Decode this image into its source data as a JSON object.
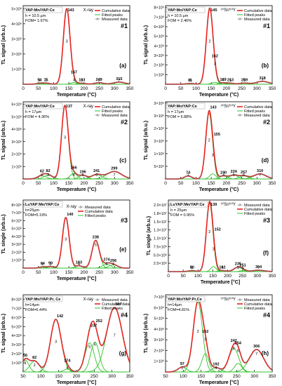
{
  "chart_data": [
    {
      "type": "line",
      "label": "(a)",
      "number": "#1",
      "title": "YAP:Mn/YAP:Ce",
      "source": "X-ray",
      "params": [
        "h = 10.5 µm",
        "FOM= 1.97%"
      ],
      "xlabel": "Temperature (°C)",
      "ylabel": "TL signal (arb.u.)",
      "xlim": [
        0,
        350
      ],
      "ylim": [
        0,
        5200000.0
      ],
      "xticks": [
        0,
        50,
        100,
        150,
        200,
        250,
        300,
        350
      ],
      "yticks": [
        1000000.0,
        2000000.0,
        3000000.0,
        4000000.0,
        5000000.0
      ],
      "ytick_labels": [
        "1×10⁶",
        "2×10⁶",
        "3×10⁶",
        "4×10⁶",
        "5×10⁶"
      ],
      "legend": [
        "Cumulative data",
        "Fitted peaks",
        "Measured data"
      ],
      "peaks": [
        {
          "T": 54,
          "A": 60000.0,
          "w": 10
        },
        {
          "T": 75,
          "A": 70000.0,
          "w": 12
        },
        {
          "T": 143,
          "A": 5000000.0,
          "w": 11
        },
        {
          "T": 167,
          "A": 120000.0,
          "w": 10
        },
        {
          "T": 193,
          "A": 60000.0,
          "w": 12
        },
        {
          "T": 249,
          "A": 100000.0,
          "w": 14
        },
        {
          "T": 315,
          "A": 140000.0,
          "w": 18
        }
      ],
      "peak_labels": [
        "54",
        "75",
        "143",
        "167",
        "193",
        "249",
        "315"
      ],
      "peak_numbers": [
        "1",
        "2",
        "3",
        "4",
        "5",
        "6",
        "7"
      ]
    },
    {
      "type": "line",
      "label": "(b)",
      "number": "#1",
      "title": "YAP:Mn/YAP:Ce",
      "source": "⁹⁰Sr/⁹⁰Y",
      "params": [
        "h = 10.5 µm",
        "FOM = 2.46%"
      ],
      "xlabel": "Temperature (°C)",
      "ylabel": "TL signal (arb.u.)",
      "xlim": [
        0,
        350
      ],
      "ylim": [
        0,
        8200000.0
      ],
      "xticks": [
        0,
        50,
        100,
        150,
        200,
        250,
        300,
        350
      ],
      "yticks": [
        1000000.0,
        2000000.0,
        3000000.0,
        4000000.0,
        5000000.0,
        6000000.0,
        7000000.0,
        8000000.0
      ],
      "ytick_labels": [
        "1×10⁶",
        "2×10⁶",
        "3×10⁶",
        "4×10⁶",
        "5×10⁶",
        "6×10⁶",
        "7×10⁶",
        "8×10⁶"
      ],
      "legend": [
        "Cumulative data",
        "Fitted peaks",
        "Measured data"
      ],
      "peaks": [
        {
          "T": 81,
          "A": 80000.0,
          "w": 12
        },
        {
          "T": 145,
          "A": 7900000.0,
          "w": 11
        },
        {
          "T": 162,
          "A": 200000.0,
          "w": 10
        },
        {
          "T": 189,
          "A": 120000.0,
          "w": 12
        },
        {
          "T": 213,
          "A": 100000.0,
          "w": 12
        },
        {
          "T": 259,
          "A": 120000.0,
          "w": 14
        },
        {
          "T": 318,
          "A": 300000.0,
          "w": 20
        }
      ],
      "peak_labels": [
        "81",
        "145",
        "162",
        "189",
        "213",
        "259",
        "318"
      ],
      "peak_numbers": [
        "1",
        "2",
        "3",
        "4",
        "5",
        "6",
        "7"
      ]
    },
    {
      "type": "line",
      "label": "(c)",
      "number": "#2",
      "title": "YAP:Mn/YAP:Ce",
      "source": "X-ray",
      "params": [
        "h = 17µm",
        "FOM = 4.36%"
      ],
      "xlabel": "Temperature (°C)",
      "ylabel": "TL signal (arb.u.)",
      "xlim": [
        0,
        350
      ],
      "ylim": [
        0,
        6200000.0
      ],
      "xticks": [
        0,
        50,
        100,
        150,
        200,
        250,
        300,
        350
      ],
      "yticks": [
        1000000.0,
        2000000.0,
        3000000.0,
        4000000.0,
        5000000.0,
        6000000.0
      ],
      "ytick_labels": [
        "1×10⁶",
        "2×10⁶",
        "3×10⁶",
        "4×10⁶",
        "5×10⁶",
        "6×10⁶"
      ],
      "legend": [
        "Cumulative data",
        "Fitted peaks",
        "Measured data"
      ],
      "peaks": [
        {
          "T": 62,
          "A": 250000.0,
          "w": 14
        },
        {
          "T": 82,
          "A": 300000.0,
          "w": 14
        },
        {
          "T": 137,
          "A": 5900000.0,
          "w": 11
        },
        {
          "T": 166,
          "A": 450000.0,
          "w": 11
        },
        {
          "T": 196,
          "A": 300000.0,
          "w": 12
        },
        {
          "T": 241,
          "A": 350000.0,
          "w": 16
        },
        {
          "T": 299,
          "A": 600000.0,
          "w": 24
        }
      ],
      "peak_labels": [
        "62",
        "82",
        "137",
        "166",
        "196",
        "241",
        "299"
      ],
      "peak_numbers": [
        "1",
        "2",
        "3",
        "4",
        "5",
        "6",
        "7"
      ]
    },
    {
      "type": "line",
      "label": "(d)",
      "number": "#2",
      "title": "YAP:Mn/YAP:Ce",
      "source": "⁹⁰Sr/⁹⁰Y",
      "params": [
        "h = 17µm",
        "FOM = 6.88%"
      ],
      "xlabel": "Temperature (°C)",
      "ylabel": "TL signal (arb.u.)",
      "xlim": [
        0,
        350
      ],
      "ylim": [
        0,
        3050000.0
      ],
      "xticks": [
        0,
        50,
        100,
        150,
        200,
        250,
        300,
        350
      ],
      "yticks": [
        500000.0,
        1000000.0,
        1500000.0,
        2000000.0,
        2500000.0,
        3000000.0
      ],
      "ytick_labels": [
        "5×10⁵",
        "1×10⁶",
        "2×10⁶",
        "2×10⁶",
        "3×10⁶",
        "3×10⁶"
      ],
      "legend": [
        "Cumulative data",
        "Fitted peaks",
        "Measured data"
      ],
      "peaks": [
        {
          "T": 74,
          "A": 120000.0,
          "w": 12
        },
        {
          "T": 143,
          "A": 2600000.0,
          "w": 11
        },
        {
          "T": 155,
          "A": 200000.0,
          "w": 10
        },
        {
          "T": 190,
          "A": 120000.0,
          "w": 12
        },
        {
          "T": 224,
          "A": 150000.0,
          "w": 14
        },
        {
          "T": 257,
          "A": 120000.0,
          "w": 14
        },
        {
          "T": 310,
          "A": 200000.0,
          "w": 20
        }
      ],
      "peak_labels": [
        "74",
        "143",
        "155",
        "190",
        "224",
        "257",
        "310"
      ],
      "peak_numbers": [
        "1",
        "2",
        "3",
        "4",
        "5",
        "6",
        "7"
      ]
    },
    {
      "type": "line",
      "label": "(e)",
      "number": "#3",
      "title": "LuYAP:Mn/YAP:Ce",
      "source": "X-ray",
      "params": [
        "h=25µm",
        "FOM=5.19%"
      ],
      "xlabel": "Temperature [°C]",
      "ylabel": "TL single (arb.u.)",
      "xlim": [
        0,
        350
      ],
      "ylim": [
        0,
        8600000.0
      ],
      "xticks": [
        0,
        50,
        100,
        150,
        200,
        250,
        300,
        350
      ],
      "yticks": [
        1000000.0,
        2000000.0,
        3000000.0,
        4000000.0,
        5000000.0,
        6000000.0,
        7000000.0,
        8000000.0
      ],
      "ytick_labels": [
        "1×10⁶",
        "2×10⁶",
        "3×10⁶",
        "4×10⁶",
        "5×10⁶",
        "6×10⁶",
        "7×10⁶",
        "8×10⁶"
      ],
      "legend": [
        "Measured data",
        "Cumulative data",
        "Fitted peaks"
      ],
      "peaks": [
        {
          "T": 64,
          "A": 150000.0,
          "w": 10
        },
        {
          "T": 90,
          "A": 200000.0,
          "w": 12
        },
        {
          "T": 140,
          "A": 6400000.0,
          "w": 11
        },
        {
          "T": 183,
          "A": 300000.0,
          "w": 12
        },
        {
          "T": 238,
          "A": 3500000.0,
          "w": 12
        },
        {
          "T": 274,
          "A": 500000.0,
          "w": 13
        },
        {
          "T": 296,
          "A": 400000.0,
          "w": 14
        }
      ],
      "peak_labels": [
        "64",
        "90",
        "140",
        "183",
        "238",
        "274",
        "296"
      ],
      "peak_numbers": [
        "1",
        "2",
        "3",
        "4",
        "5",
        "6",
        "7"
      ]
    },
    {
      "type": "line",
      "label": "(f)",
      "number": "#3",
      "title": "LuYAP:Mn/YAP:Ce",
      "source": "⁹⁰Sr/⁹⁰Y",
      "params": [
        "h = 25µm",
        "FOM = 0.95%"
      ],
      "xlabel": "Temperature [°C]",
      "ylabel": "TL single (arb.u.)",
      "xlim": [
        0,
        350
      ],
      "ylim": [
        0,
        21500000.0
      ],
      "xticks": [
        0,
        50,
        100,
        150,
        200,
        250,
        300,
        350
      ],
      "yticks": [
        2500000.0,
        5000000.0,
        7500000.0,
        10000000.0,
        12500000.0,
        15000000.0,
        17500000.0,
        20000000.0
      ],
      "ytick_labels": [
        "2.5×10⁶",
        "5.0×10⁶",
        "7.5×10⁶",
        "1.0×10⁷",
        "1.3×10⁷",
        "1.5×10⁷",
        "1.8×10⁷",
        "2.0×10⁷"
      ],
      "legend": [
        "Measured data",
        "Cumulative data",
        "Fitted peaks"
      ],
      "peaks": [
        {
          "T": 80,
          "A": 300000.0,
          "w": 12
        },
        {
          "T": 139,
          "A": 20500000.0,
          "w": 11
        },
        {
          "T": 152,
          "A": 1500000.0,
          "w": 9
        },
        {
          "T": 182,
          "A": 300000.0,
          "w": 12
        },
        {
          "T": 235,
          "A": 1300000.0,
          "w": 14
        },
        {
          "T": 251,
          "A": 300000.0,
          "w": 10
        },
        {
          "T": 304,
          "A": 400000.0,
          "w": 20
        }
      ],
      "peak_labels": [
        "80",
        "139",
        "152",
        "182",
        "235",
        "251",
        "304"
      ],
      "peak_numbers": [
        "1",
        "2",
        "3",
        "4",
        "5",
        "6",
        "7"
      ]
    },
    {
      "type": "line",
      "label": "(g)",
      "number": "#4",
      "title": "YAP:Mn/YAP:Pr, Ce",
      "source": "X-ray",
      "params": [
        "h=14µm",
        "FOM=6.44%"
      ],
      "xlabel": "Temperature [°C]",
      "ylabel": "TL signal (arb.u.)",
      "xlim": [
        50,
        350
      ],
      "ylim": [
        0,
        8500000.0
      ],
      "xticks": [
        50,
        100,
        150,
        200,
        250,
        300,
        350
      ],
      "yticks": [
        1000000.0,
        2000000.0,
        3000000.0,
        4000000.0,
        5000000.0,
        6000000.0,
        7000000.0,
        8000000.0
      ],
      "ytick_labels": [
        "1×10⁶",
        "2×10⁶",
        "3×10⁶",
        "4×10⁶",
        "5×10⁶",
        "6×10⁶",
        "7×10⁶",
        "8×10⁶"
      ],
      "legend": [
        "Measured data",
        "Cumulative data",
        "Fitted peaks"
      ],
      "peaks": [
        {
          "T": 56,
          "A": 1300000.0,
          "w": 10
        },
        {
          "T": 82,
          "A": 1200000.0,
          "w": 13
        },
        {
          "T": 142,
          "A": 5800000.0,
          "w": 15
        },
        {
          "T": 174,
          "A": 300000.0,
          "w": 10
        },
        {
          "T": 237,
          "A": 3200000.0,
          "w": 13
        },
        {
          "T": 252,
          "A": 3300000.0,
          "w": 12
        },
        {
          "T": 307,
          "A": 7100000.0,
          "w": 22
        }
      ],
      "peak_labels": [
        "56",
        "82",
        "142",
        "174",
        "237",
        "252",
        "307"
      ],
      "peak_numbers": [
        "1",
        "2",
        "3",
        "4",
        "5",
        "6",
        "7"
      ]
    },
    {
      "type": "line",
      "label": "(h)",
      "number": "#4",
      "title": "YAP:Mn/YAP:Pr,Ce",
      "source": "⁹⁰Sr/⁹⁰Y",
      "params": [
        "h=14µm",
        "FOM=4.81%"
      ],
      "xlabel": "Temperature [°C]",
      "ylabel": "TL signal (arb.u.)",
      "xlim": [
        50,
        350
      ],
      "ylim": [
        0,
        7200000.0
      ],
      "xticks": [
        50,
        100,
        150,
        200,
        250,
        300,
        350
      ],
      "yticks": [
        1000000.0,
        2000000.0,
        3000000.0,
        4000000.0,
        5000000.0,
        6000000.0,
        7000000.0
      ],
      "ytick_labels": [
        "1×10⁶",
        "2×10⁶",
        "3×10⁶",
        "4×10⁶",
        "5×10⁶",
        "6×10⁶",
        "7×10⁶"
      ],
      "legend": [
        "Measured data",
        "Cumulative data",
        "Fitted peaks"
      ],
      "peaks": [
        {
          "T": 97,
          "A": 450000.0,
          "w": 12
        },
        {
          "T": 141,
          "A": 6500000.0,
          "w": 13
        },
        {
          "T": 162,
          "A": 1700000.0,
          "w": 10
        },
        {
          "T": 192,
          "A": 400000.0,
          "w": 12
        },
        {
          "T": 242,
          "A": 2200000.0,
          "w": 14
        },
        {
          "T": 254,
          "A": 800000.0,
          "w": 10
        },
        {
          "T": 306,
          "A": 2100000.0,
          "w": 20
        }
      ],
      "peak_labels": [
        "97",
        "141",
        "162",
        "192",
        "242",
        "254",
        "306"
      ],
      "peak_numbers": [
        "1",
        "2",
        "3",
        "4",
        "5",
        "6",
        "7"
      ]
    }
  ],
  "colors": {
    "cumulative": "#e8211d",
    "fitted": "#32c12c",
    "measured": "#7a7a7a",
    "axis": "#000000"
  }
}
